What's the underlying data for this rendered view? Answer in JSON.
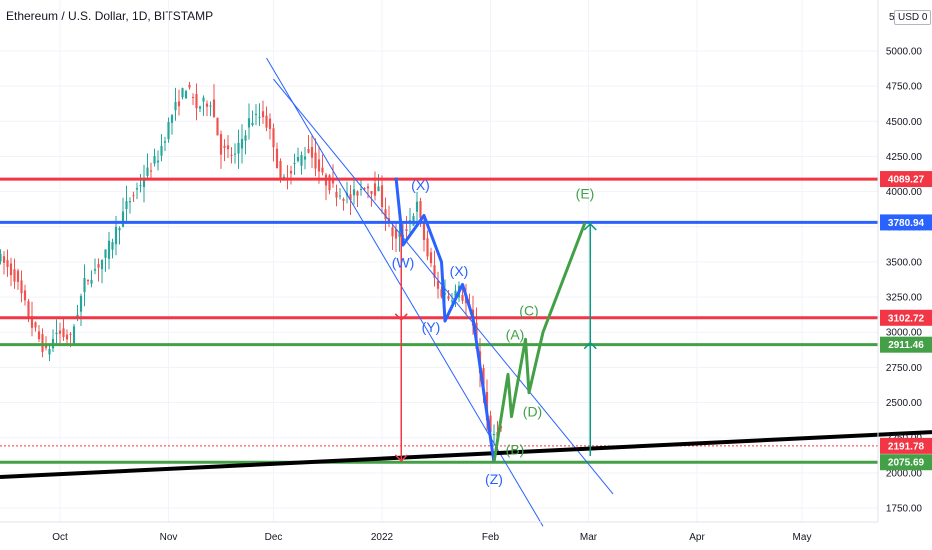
{
  "header": {
    "title": "Ethereum / U.S. Dollar, 1D, BITSTAMP",
    "currency_prefix": "5",
    "currency_label": "USD 0"
  },
  "chart_data": {
    "type": "candlestick",
    "title": "Ethereum / U.S. Dollar, 1D, BITSTAMP",
    "y_ticks": [
      1750,
      2000,
      2250,
      2500,
      2750,
      3000,
      3250,
      3500,
      3750,
      4000,
      4250,
      4500,
      4750,
      5000
    ],
    "y_tick_labels": [
      "1750.00",
      "2000.00",
      "2250.00",
      "2500.00",
      "2750.00",
      "3000.00",
      "3250.00",
      "3500.00",
      "3750.00",
      "4000.00",
      "4250.00",
      "4500.00",
      "4750.00",
      "5000.00"
    ],
    "x_ticks": [
      "Oct",
      "Nov",
      "Dec",
      "2022",
      "Feb",
      "Mar",
      "Apr",
      "May"
    ],
    "price_levels": [
      {
        "value": 4089.27,
        "label": "4089.27",
        "color": "#f23645"
      },
      {
        "value": 3780.94,
        "label": "3780.94",
        "color": "#2962ff"
      },
      {
        "value": 3102.72,
        "label": "3102.72",
        "color": "#f23645"
      },
      {
        "value": 2911.46,
        "label": "2911.46",
        "color": "#43a047"
      },
      {
        "value": 2191.78,
        "label": "2191.78",
        "color": "#f23645"
      },
      {
        "value": 2075.69,
        "label": "2075.69",
        "color": "#43a047"
      }
    ],
    "wave_labels_blue": [
      "(W)",
      "(X)",
      "(Y)",
      "(X)",
      "(Z)"
    ],
    "wave_labels_green": [
      "(A)",
      "(B)",
      "(C)",
      "(D)",
      "(E)"
    ],
    "colors": {
      "up": "#26a69a",
      "down": "#ef5350",
      "blue": "#2962ff",
      "green": "#43a047",
      "red": "#f23645",
      "teal_arrow": "#089981",
      "support": "#000000"
    }
  }
}
